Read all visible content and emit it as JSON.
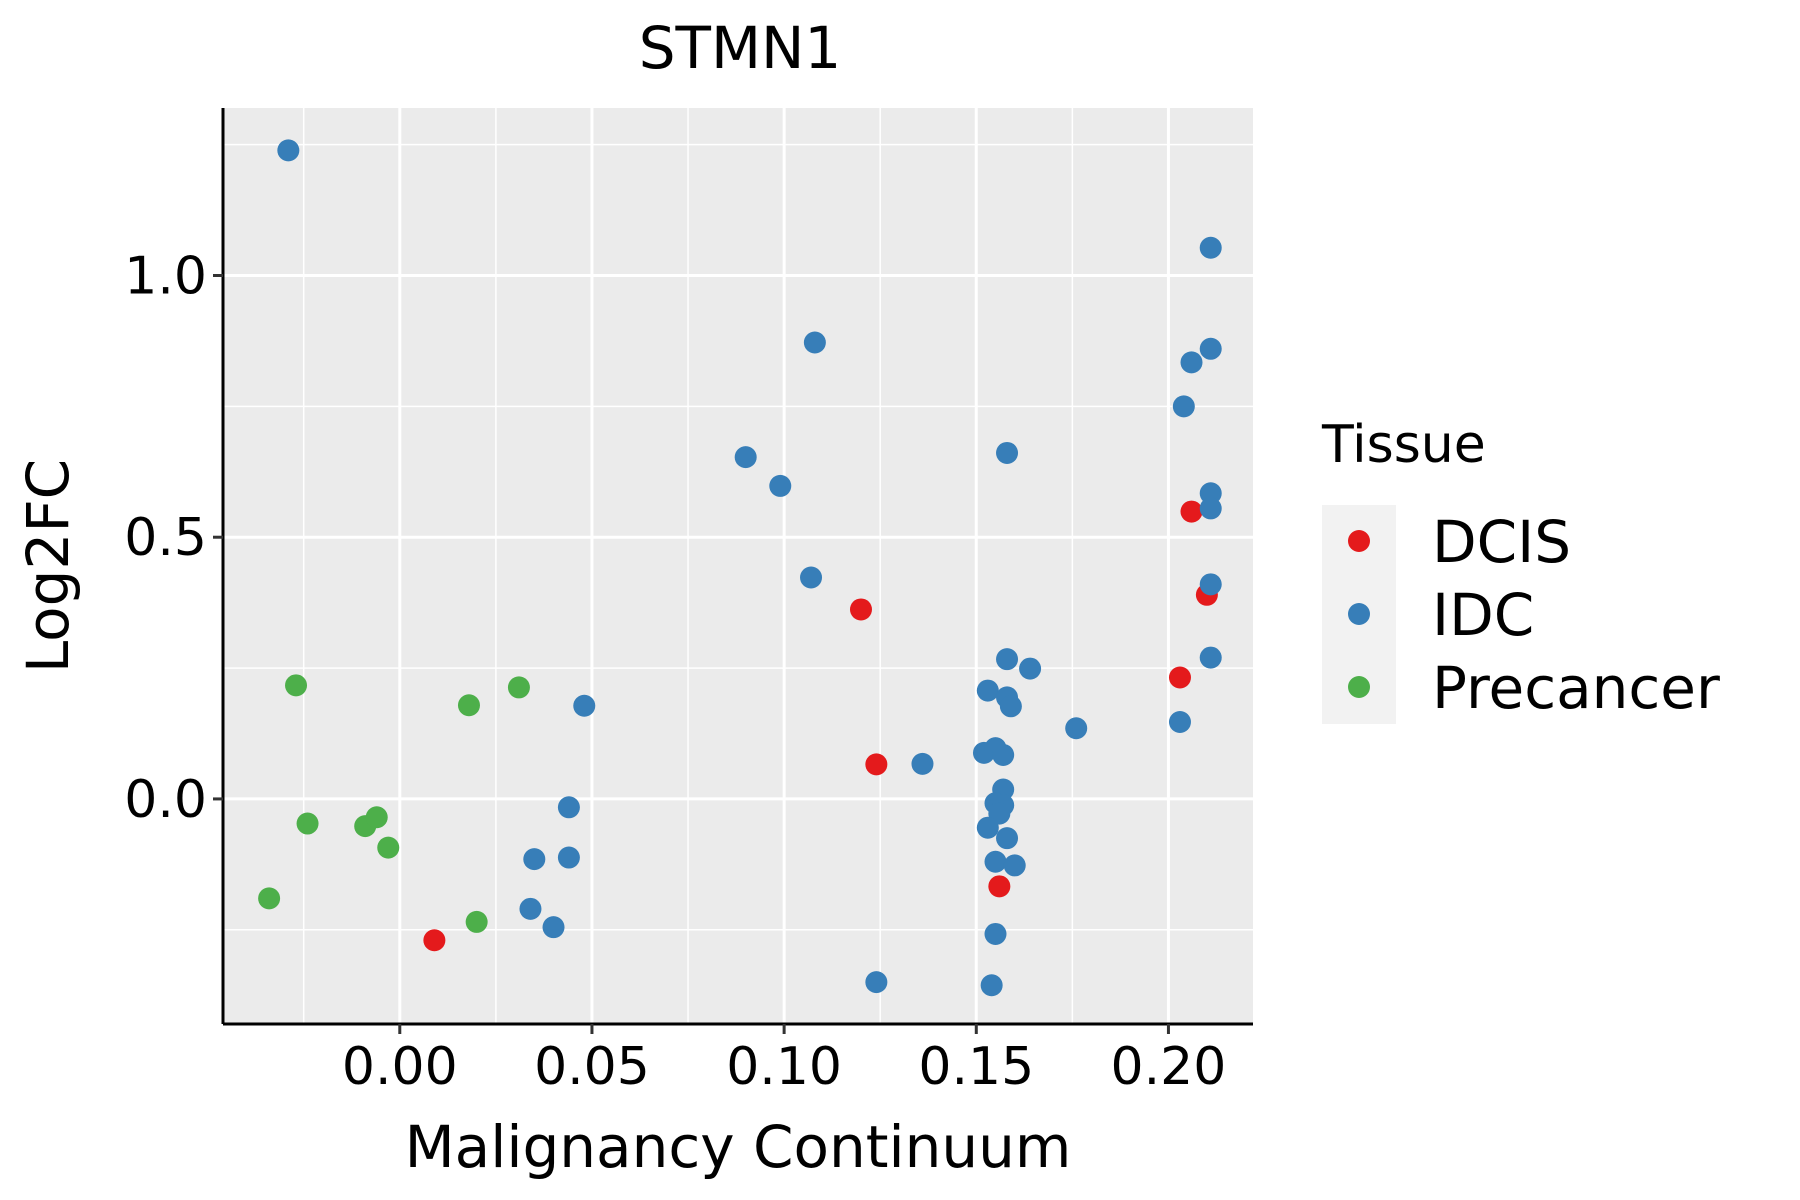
{
  "chart_data": {
    "type": "scatter",
    "title": "STMN1",
    "xlabel": "Malignancy Continuum",
    "ylabel": "Log2FC",
    "xlim": [
      -0.046,
      0.222
    ],
    "ylim": [
      -0.43,
      1.32
    ],
    "grid": true,
    "x_ticks": [
      0.0,
      0.05,
      0.1,
      0.15,
      0.2
    ],
    "x_tick_labels": [
      "0.00",
      "0.05",
      "0.10",
      "0.15",
      "0.20"
    ],
    "y_ticks": [
      0.0,
      0.5,
      1.0
    ],
    "y_tick_labels": [
      "0.0",
      "0.5",
      "1.0"
    ],
    "legend": {
      "title": "Tissue",
      "position": "right",
      "entries": [
        {
          "name": "DCIS",
          "color": "#E41A1C"
        },
        {
          "name": "IDC",
          "color": "#377EB8"
        },
        {
          "name": "Precancer",
          "color": "#4DAF4A"
        }
      ]
    },
    "series": [
      {
        "name": "DCIS",
        "color": "#E41A1C",
        "points": [
          [
            0.206,
            0.549
          ],
          [
            0.21,
            0.39
          ],
          [
            0.203,
            0.232
          ],
          [
            0.12,
            0.362
          ],
          [
            0.124,
            0.066
          ],
          [
            0.156,
            -0.167
          ],
          [
            0.009,
            -0.27
          ]
        ]
      },
      {
        "name": "IDC",
        "color": "#377EB8",
        "points": [
          [
            -0.029,
            1.239
          ],
          [
            0.211,
            1.053
          ],
          [
            0.211,
            0.86
          ],
          [
            0.206,
            0.834
          ],
          [
            0.204,
            0.75
          ],
          [
            0.211,
            0.584
          ],
          [
            0.211,
            0.555
          ],
          [
            0.211,
            0.41
          ],
          [
            0.211,
            0.27
          ],
          [
            0.203,
            0.147
          ],
          [
            0.108,
            0.872
          ],
          [
            0.09,
            0.653
          ],
          [
            0.099,
            0.598
          ],
          [
            0.107,
            0.423
          ],
          [
            0.158,
            0.661
          ],
          [
            0.158,
            0.267
          ],
          [
            0.164,
            0.249
          ],
          [
            0.153,
            0.207
          ],
          [
            0.158,
            0.194
          ],
          [
            0.159,
            0.177
          ],
          [
            0.176,
            0.135
          ],
          [
            0.136,
            0.067
          ],
          [
            0.152,
            0.088
          ],
          [
            0.155,
            0.097
          ],
          [
            0.157,
            0.084
          ],
          [
            0.157,
            0.018
          ],
          [
            0.155,
            -0.008
          ],
          [
            0.157,
            -0.012
          ],
          [
            0.156,
            -0.028
          ],
          [
            0.153,
            -0.055
          ],
          [
            0.158,
            -0.075
          ],
          [
            0.155,
            -0.12
          ],
          [
            0.16,
            -0.127
          ],
          [
            0.155,
            -0.258
          ],
          [
            0.154,
            -0.356
          ],
          [
            0.124,
            -0.35
          ],
          [
            0.048,
            0.178
          ],
          [
            0.044,
            -0.016
          ],
          [
            0.044,
            -0.112
          ],
          [
            0.035,
            -0.115
          ],
          [
            0.034,
            -0.21
          ],
          [
            0.04,
            -0.245
          ]
        ]
      },
      {
        "name": "Precancer",
        "color": "#4DAF4A",
        "points": [
          [
            -0.027,
            0.217
          ],
          [
            0.018,
            0.179
          ],
          [
            0.031,
            0.213
          ],
          [
            -0.024,
            -0.047
          ],
          [
            -0.009,
            -0.052
          ],
          [
            -0.006,
            -0.035
          ],
          [
            -0.003,
            -0.093
          ],
          [
            -0.034,
            -0.19
          ],
          [
            0.02,
            -0.235
          ]
        ]
      }
    ]
  }
}
